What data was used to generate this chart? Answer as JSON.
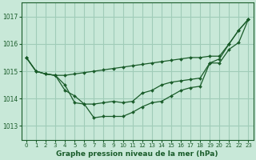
{
  "title": "Graphe pression niveau de la mer (hPa)",
  "bg_color": "#c8e8d8",
  "grid_color": "#a0ccb8",
  "line_color": "#1a5c2a",
  "xlim": [
    -0.5,
    23.5
  ],
  "ylim": [
    1012.5,
    1017.5
  ],
  "yticks": [
    1013,
    1014,
    1015,
    1016,
    1017
  ],
  "xticks": [
    0,
    1,
    2,
    3,
    4,
    5,
    6,
    7,
    8,
    9,
    10,
    11,
    12,
    13,
    14,
    15,
    16,
    17,
    18,
    19,
    20,
    21,
    22,
    23
  ],
  "series": [
    [
      1015.5,
      1015.0,
      1014.9,
      1014.85,
      1014.85,
      1014.9,
      1014.95,
      1015.0,
      1015.05,
      1015.1,
      1015.15,
      1015.2,
      1015.25,
      1015.3,
      1015.35,
      1015.4,
      1015.45,
      1015.5,
      1015.5,
      1015.55,
      1015.55,
      1016.0,
      1016.5,
      1016.9
    ],
    [
      1015.5,
      1015.0,
      1014.9,
      1014.85,
      1014.3,
      1014.1,
      1013.8,
      1013.8,
      1013.85,
      1013.9,
      1013.85,
      1013.9,
      1014.2,
      1014.3,
      1014.5,
      1014.6,
      1014.65,
      1014.7,
      1014.75,
      1015.3,
      1015.3,
      1015.8,
      1016.05,
      1016.9
    ],
    [
      1015.5,
      1015.0,
      1014.9,
      1014.85,
      1014.5,
      1013.85,
      1013.8,
      1013.3,
      1013.35,
      1013.35,
      1013.35,
      1013.5,
      1013.7,
      1013.85,
      1013.9,
      1014.1,
      1014.3,
      1014.4,
      1014.45,
      1015.3,
      1015.45,
      1016.0,
      1016.5,
      1016.9
    ]
  ]
}
